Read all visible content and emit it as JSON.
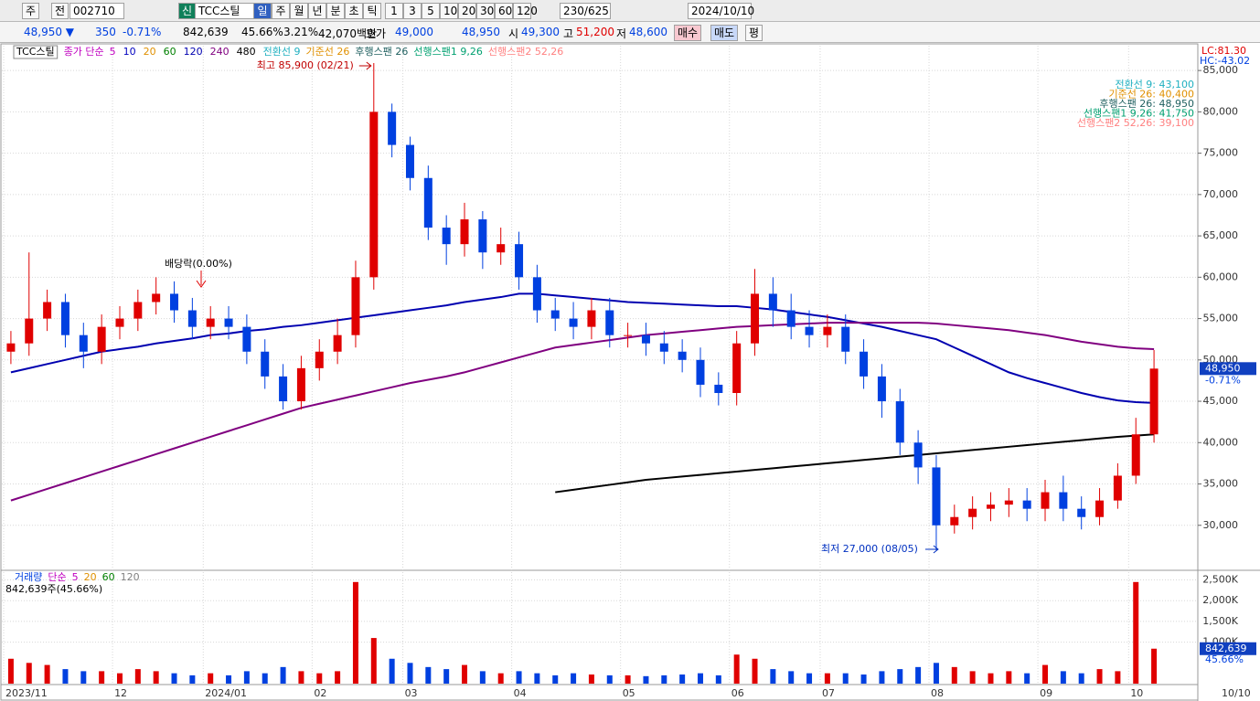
{
  "toolbar": {
    "market": "주",
    "prefix": "전",
    "code": "002710",
    "badge": "신",
    "name": "TCC스틸",
    "periods": [
      "일",
      "주",
      "월",
      "년",
      "분",
      "초",
      "틱"
    ],
    "intervals": [
      "1",
      "3",
      "5",
      "10",
      "20",
      "30",
      "60",
      "120"
    ],
    "count": "230/625",
    "date": "2024/10/10"
  },
  "quote_bar": {
    "price": "48,950 ▼",
    "change": "350",
    "change_pct": "-0.71%",
    "volume": "842,639",
    "volume_pct": "45.66%",
    "turnover_rate": "3.21%",
    "amount": "42,070백만",
    "bid_label": "호가",
    "bid": "49,000",
    "ask": "48,950",
    "open_label": "시",
    "open": "49,300",
    "high_label": "고",
    "high": "51,200",
    "low_label": "저",
    "low": "48,600",
    "buy": "매수",
    "sell": "매도",
    "eval": "평"
  },
  "chart_data": [
    {
      "type": "candlestick",
      "stock": "TCC스틸",
      "ma_label": "종가 단순",
      "other_ma": [
        {
          "name": "5",
          "color": "#c000c0"
        },
        {
          "name": "10",
          "color": "#0000c0"
        },
        {
          "name": "20",
          "color": "#e09000"
        },
        {
          "name": "60",
          "color": "#008000"
        }
      ],
      "ichimoku_legend": [
        {
          "name": "전환선 9",
          "color": "#20b0c0"
        },
        {
          "name": "기준선 26",
          "color": "#e09000"
        },
        {
          "name": "후행스팬 26",
          "color": "#206060"
        },
        {
          "name": "선행스팬1 9,26",
          "color": "#00a070"
        },
        {
          "name": "선행스팬2 52,26",
          "color": "#ff8080"
        }
      ],
      "ichimoku_values": [
        "전환선 9: 43,100",
        "기준선 26: 40,400",
        "후행스팬 26: 48,950",
        "선행스팬1 9,26: 41,750",
        "선행스팬2 52,26: 39,100"
      ],
      "lc": "LC:81.30",
      "hc": "HC:-43.02",
      "annotations": [
        "최고 85,900 (02/21)",
        "최저 27,000 (08/05)",
        "배당락(0.00%)"
      ],
      "last_label": "48,950",
      "last_change_label": "-0.71%",
      "x_end_label": "10/10",
      "categories": [
        "2023/11",
        null,
        null,
        null,
        null,
        null,
        "12",
        null,
        null,
        null,
        null,
        "2024/01",
        null,
        null,
        null,
        null,
        null,
        "02",
        null,
        null,
        null,
        null,
        "03",
        null,
        null,
        null,
        null,
        null,
        "04",
        null,
        null,
        null,
        null,
        null,
        "05",
        null,
        null,
        null,
        null,
        null,
        "06",
        null,
        null,
        null,
        null,
        "07",
        null,
        null,
        null,
        null,
        null,
        "08",
        null,
        null,
        null,
        null,
        null,
        "09",
        null,
        null,
        null,
        null,
        "10",
        null
      ],
      "open": [
        51000,
        52000,
        55000,
        57000,
        53000,
        51000,
        54000,
        55000,
        57000,
        58000,
        56000,
        54000,
        55000,
        54000,
        51000,
        48000,
        45000,
        49000,
        51000,
        53000,
        60000,
        80000,
        76000,
        72000,
        66000,
        64000,
        67000,
        63000,
        64000,
        60000,
        56000,
        55000,
        54000,
        56000,
        53000,
        53000,
        52000,
        51000,
        50000,
        47000,
        46000,
        52000,
        58000,
        56000,
        54000,
        53000,
        54000,
        51000,
        48000,
        45000,
        40000,
        37000,
        30000,
        31000,
        32000,
        32500,
        33000,
        32000,
        34000,
        32000,
        31000,
        33000,
        36000,
        41000
      ],
      "high": [
        53500,
        63000,
        58500,
        58000,
        54500,
        55500,
        56500,
        58500,
        60000,
        59500,
        57500,
        56500,
        56500,
        55500,
        52500,
        49500,
        50500,
        52500,
        55000,
        62000,
        85900,
        81000,
        77000,
        73500,
        67500,
        69000,
        68000,
        66000,
        65500,
        61500,
        57500,
        57000,
        57500,
        57500,
        54500,
        54500,
        53500,
        52500,
        51500,
        48500,
        53500,
        61000,
        60000,
        58000,
        56000,
        55500,
        55500,
        52500,
        49500,
        46500,
        41500,
        38500,
        32500,
        33500,
        34000,
        34500,
        34500,
        35500,
        36000,
        33500,
        34500,
        37500,
        43000,
        51200
      ],
      "low": [
        49500,
        50500,
        53500,
        51500,
        49000,
        49500,
        52500,
        53500,
        55500,
        54500,
        52500,
        52500,
        52500,
        49500,
        46500,
        44000,
        44000,
        47500,
        49500,
        51500,
        58500,
        74500,
        70500,
        64500,
        61500,
        62500,
        61000,
        61500,
        58500,
        54500,
        53500,
        52500,
        52500,
        51500,
        51500,
        50500,
        49500,
        48500,
        45500,
        44500,
        44500,
        50500,
        54000,
        52500,
        51500,
        51500,
        49500,
        46500,
        43000,
        38500,
        35000,
        27000,
        29000,
        29500,
        30500,
        31000,
        30500,
        30500,
        30500,
        29500,
        30000,
        32000,
        35000,
        40000
      ],
      "close": [
        52000,
        55000,
        57000,
        53000,
        51000,
        54000,
        55000,
        57000,
        58000,
        56000,
        54000,
        55000,
        54000,
        51000,
        48000,
        45000,
        49000,
        51000,
        53000,
        60000,
        80000,
        76000,
        72000,
        66000,
        64000,
        67000,
        63000,
        64000,
        60000,
        56000,
        55000,
        54000,
        56000,
        53000,
        53000,
        52000,
        51000,
        50000,
        47000,
        46000,
        52000,
        58000,
        56000,
        54000,
        53000,
        54000,
        51000,
        48000,
        45000,
        40000,
        37000,
        30000,
        31000,
        32000,
        32500,
        33000,
        32000,
        34000,
        32000,
        31000,
        33000,
        36000,
        41000,
        48950
      ],
      "series": [
        {
          "name": "120",
          "color": "#0000b0",
          "values": [
            48500,
            49000,
            49500,
            50000,
            50500,
            51000,
            51300,
            51600,
            52000,
            52300,
            52600,
            53000,
            53200,
            53500,
            53700,
            54000,
            54200,
            54500,
            54800,
            55100,
            55400,
            55700,
            56000,
            56300,
            56600,
            57000,
            57300,
            57600,
            58000,
            58000,
            57800,
            57600,
            57400,
            57200,
            57000,
            56900,
            56800,
            56700,
            56600,
            56500,
            56500,
            56300,
            56100,
            55800,
            55500,
            55200,
            54800,
            54400,
            54000,
            53500,
            53000,
            52500,
            51500,
            50500,
            49500,
            48500,
            47800,
            47200,
            46600,
            46000,
            45500,
            45100,
            44900,
            44800
          ]
        },
        {
          "name": "240",
          "color": "#800080",
          "values": [
            33000,
            33700,
            34400,
            35100,
            35800,
            36500,
            37200,
            37900,
            38600,
            39300,
            40000,
            40700,
            41400,
            42100,
            42800,
            43500,
            44200,
            44700,
            45200,
            45700,
            46200,
            46700,
            47200,
            47600,
            48000,
            48500,
            49100,
            49700,
            50300,
            50900,
            51500,
            51800,
            52100,
            52400,
            52700,
            53000,
            53200,
            53400,
            53600,
            53800,
            54000,
            54100,
            54200,
            54300,
            54400,
            54500,
            54500,
            54500,
            54500,
            54500,
            54500,
            54400,
            54200,
            54000,
            53800,
            53600,
            53300,
            53000,
            52600,
            52200,
            51900,
            51600,
            51400,
            51300
          ]
        },
        {
          "name": "480",
          "color": "#000000",
          "values": [
            null,
            null,
            null,
            null,
            null,
            null,
            null,
            null,
            null,
            null,
            null,
            null,
            null,
            null,
            null,
            null,
            null,
            null,
            null,
            null,
            null,
            null,
            null,
            null,
            null,
            null,
            null,
            null,
            null,
            null,
            34000,
            34300,
            34600,
            34900,
            35200,
            35500,
            35700,
            35900,
            36100,
            36300,
            36500,
            36700,
            36900,
            37100,
            37300,
            37500,
            37700,
            37900,
            38100,
            38300,
            38500,
            38700,
            38900,
            39100,
            39300,
            39500,
            39700,
            39900,
            40100,
            40300,
            40500,
            40700,
            40850,
            41000
          ]
        }
      ],
      "up_color": "#e00000",
      "down_color": "#0040e0",
      "ylim": [
        25000,
        88000
      ],
      "yticks": [
        {
          "value": 30000,
          "label": "30,000"
        },
        {
          "value": 35000,
          "label": "35,000"
        },
        {
          "value": 40000,
          "label": "40,000"
        },
        {
          "value": 45000,
          "label": "45,000"
        },
        {
          "value": 50000,
          "label": "50,000"
        },
        {
          "value": 55000,
          "label": "55,000"
        },
        {
          "value": 60000,
          "label": "60,000"
        },
        {
          "value": 65000,
          "label": "65,000"
        },
        {
          "value": 70000,
          "label": "70,000"
        },
        {
          "value": 75000,
          "label": "75,000"
        },
        {
          "value": 80000,
          "label": "80,000"
        },
        {
          "value": 85000,
          "label": "85,000"
        }
      ],
      "grid": true
    },
    {
      "type": "bar",
      "title": "거래량",
      "ma_label": "단순",
      "ma_legend": [
        {
          "name": "5",
          "color": "#c000c0"
        },
        {
          "name": "20",
          "color": "#e09000"
        },
        {
          "name": "60",
          "color": "#008000"
        },
        {
          "name": "120",
          "color": "#808080"
        }
      ],
      "subtitle": "842,639주(45.66%)",
      "last_label": "842,639",
      "last_pct_label": "45.66%",
      "values": [
        600000,
        500000,
        450000,
        350000,
        300000,
        300000,
        250000,
        350000,
        300000,
        250000,
        200000,
        250000,
        200000,
        300000,
        250000,
        400000,
        300000,
        250000,
        300000,
        2450000,
        1100000,
        600000,
        500000,
        400000,
        350000,
        450000,
        300000,
        250000,
        300000,
        250000,
        200000,
        250000,
        220000,
        200000,
        200000,
        180000,
        200000,
        220000,
        250000,
        200000,
        700000,
        600000,
        350000,
        300000,
        250000,
        250000,
        250000,
        220000,
        300000,
        350000,
        400000,
        500000,
        400000,
        300000,
        250000,
        300000,
        250000,
        450000,
        300000,
        250000,
        350000,
        300000,
        2450000,
        842639
      ],
      "ylim": [
        0,
        2600000
      ],
      "yticks": [
        {
          "value": 1000000,
          "label": "1,000K"
        },
        {
          "value": 1500000,
          "label": "1,500K"
        },
        {
          "value": 2000000,
          "label": "2,000K"
        },
        {
          "value": 2500000,
          "label": "2,500K"
        }
      ],
      "grid": true
    }
  ]
}
